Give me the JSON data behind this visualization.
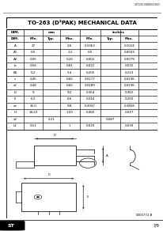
{
  "title": "TO-263 (D²PAK) MECHANICAL DATA",
  "header_text": "STGD3NB60SD",
  "page_num": "7/9",
  "bg_color": "#ffffff",
  "table_rows": [
    [
      "A",
      "27",
      "",
      "2.6",
      "0.1063",
      "",
      "0.1024"
    ],
    [
      "A1",
      "0.0",
      "",
      "1.1",
      "0.0",
      "",
      "0.0043"
    ],
    [
      "A2",
      "0.05",
      "",
      "0.20",
      "0.002",
      "",
      "0.0079"
    ],
    [
      "b",
      "0.56",
      "",
      "0.81",
      "0.022",
      "",
      "0.032"
    ],
    [
      "B2",
      "5.2",
      "",
      "5.4",
      "0.205",
      "",
      "0.213"
    ],
    [
      "c",
      "0.45",
      "",
      "0.60",
      "0.0177",
      "",
      "0.0236"
    ],
    [
      "c2",
      "0.48",
      "",
      "0.60",
      "0.0189",
      "",
      "0.0236"
    ],
    [
      "D",
      "9",
      "",
      "9.2",
      "0.354",
      "",
      "0.362"
    ],
    [
      "E",
      "6.2",
      "",
      "6.6",
      "0.244",
      "",
      "0.260"
    ],
    [
      "dv",
      "10.0",
      "",
      "9.8",
      "0.3937",
      "",
      "0.3858"
    ],
    [
      "H",
      "14.22",
      "",
      "1.93",
      "0.460",
      "",
      "0.047"
    ],
    [
      "e2",
      "",
      "2.21",
      "",
      "",
      "0.087",
      ""
    ],
    [
      "L2",
      "0.51",
      "",
      "1",
      "0.020",
      "",
      "0.039"
    ]
  ],
  "drawing_label": "0006772.B"
}
